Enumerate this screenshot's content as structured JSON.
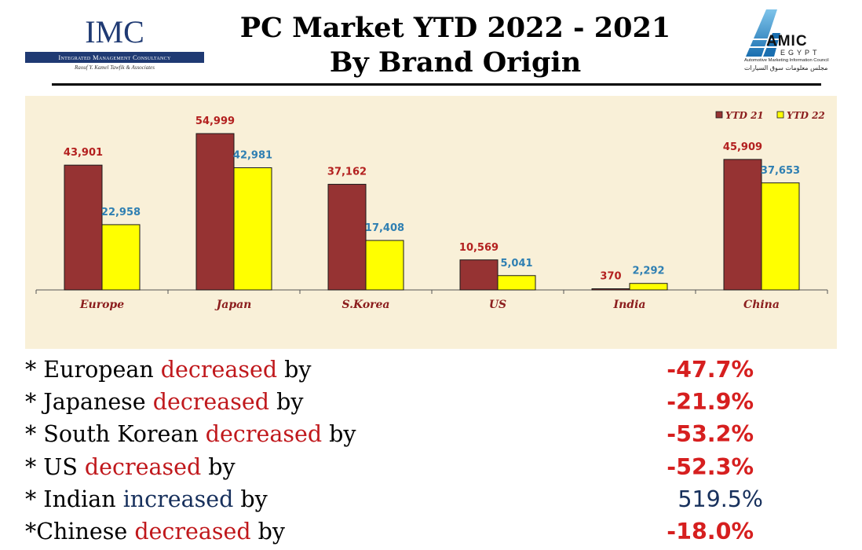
{
  "header": {
    "title_line1": "PC Market YTD 2022 - 2021",
    "title_line2": "By Brand Origin",
    "left_logo": {
      "letters": "IMC",
      "name": "Integrated Management Consultancy",
      "tagline": "Raouf Y. Kamel Tawfik & Associates"
    },
    "right_logo": {
      "word": "AMIC",
      "country": "EGYPT",
      "tagline": "Automotive Marketing Information Council",
      "arabic": "مجلس معلومات سوق السيارات"
    }
  },
  "colors": {
    "ytd21": "#963333",
    "ytd22": "#ffff00",
    "label21": "#b3201f",
    "label22": "#2f7fb2",
    "panel": "#f9f0d8",
    "category": "#8b1d1d"
  },
  "chart_data": {
    "type": "bar",
    "categories": [
      "Europe",
      "Japan",
      "S.Korea",
      "US",
      "India",
      "China"
    ],
    "series": [
      {
        "name": "YTD 21",
        "values": [
          43901,
          54999,
          37162,
          10569,
          370,
          45909
        ],
        "labels": [
          "43,901",
          "54,999",
          "37,162",
          "10,569",
          "370",
          "45,909"
        ]
      },
      {
        "name": "YTD 22",
        "values": [
          22958,
          42981,
          17408,
          5041,
          2292,
          37653
        ],
        "labels": [
          "22,958",
          "42,981",
          "17,408",
          "5,041",
          "2,292",
          "37,653"
        ]
      }
    ],
    "ylim": [
      0,
      55000
    ],
    "grid": false,
    "legend": "top-right"
  },
  "bullets": [
    {
      "prefix": "* ",
      "subject": "European",
      "verb": "decreased",
      "suffix": " by",
      "direction": "down",
      "percent": "-47.7%"
    },
    {
      "prefix": "* ",
      "subject": "Japanese",
      "verb": "decreased",
      "suffix": " by",
      "direction": "down",
      "percent": "-21.9%"
    },
    {
      "prefix": "* ",
      "subject": "South Korean",
      "verb": "decreased",
      "suffix": " by",
      "direction": "down",
      "percent": "-53.2%"
    },
    {
      "prefix": "* ",
      "subject": "US",
      "verb": "decreased",
      "suffix": " by",
      "direction": "down",
      "percent": "-52.3%"
    },
    {
      "prefix": "* ",
      "subject": "Indian",
      "verb": "increased",
      "suffix": " by",
      "direction": "up",
      "percent": "519.5%"
    },
    {
      "prefix": "*",
      "subject": "Chinese",
      "verb": "decreased",
      "suffix": " by",
      "direction": "down",
      "percent": "-18.0%"
    }
  ]
}
